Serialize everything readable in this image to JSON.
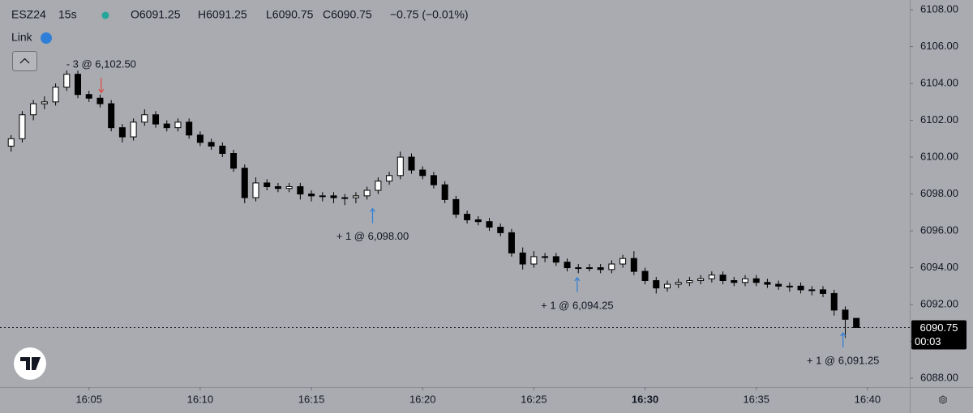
{
  "header": {
    "symbol": "ESZ24",
    "interval": "15s",
    "open": "O6091.25",
    "high": "H6091.25",
    "low": "L6090.75",
    "close": "C6090.75",
    "change": "−0.75 (−0.01%)",
    "link": "Link"
  },
  "chart_data": {
    "type": "candlestick",
    "up_color": "#ffffff",
    "down_color": "#000000",
    "wick_color": "#000000",
    "xlim": [
      961,
      1001.9
    ],
    "xticks": [
      {
        "value": 965,
        "label": "16:05"
      },
      {
        "value": 970,
        "label": "16:10"
      },
      {
        "value": 975,
        "label": "16:15"
      },
      {
        "value": 980,
        "label": "16:20"
      },
      {
        "value": 985,
        "label": "16:25"
      },
      {
        "value": 990,
        "label": "16:30"
      },
      {
        "value": 995,
        "label": "16:35"
      },
      {
        "value": 1000,
        "label": "16:40"
      }
    ],
    "bold_xtick": 5,
    "ylim": [
      6087.52,
      6108.53
    ],
    "yticks": [
      {
        "value": 6088,
        "label": "6088.00"
      },
      {
        "value": 6090,
        "label": "6090.00"
      },
      {
        "value": 6092,
        "label": "6092.00"
      },
      {
        "value": 6094,
        "label": "6094.00"
      },
      {
        "value": 6096,
        "label": "6096.00"
      },
      {
        "value": 6098,
        "label": "6098.00"
      },
      {
        "value": 6100,
        "label": "6100.00"
      },
      {
        "value": 6102,
        "label": "6102.00"
      },
      {
        "value": 6104,
        "label": "6104.00"
      },
      {
        "value": 6106,
        "label": "6106.00"
      },
      {
        "value": 6108,
        "label": "6108.00"
      }
    ],
    "x": [
      961.5,
      962,
      962.5,
      963,
      963.5,
      964,
      964.5,
      965,
      965.5,
      966,
      966.5,
      967,
      967.5,
      968,
      968.5,
      969,
      969.5,
      970,
      970.5,
      971,
      971.5,
      972,
      972.5,
      973,
      973.5,
      974,
      974.5,
      975,
      975.5,
      976,
      976.5,
      977,
      977.5,
      978,
      978.5,
      979,
      979.5,
      980,
      980.5,
      981,
      981.5,
      982,
      982.5,
      983,
      983.5,
      984,
      984.5,
      985,
      985.5,
      986,
      986.5,
      987,
      987.5,
      988,
      988.5,
      989,
      989.5,
      990,
      990.5,
      991,
      991.5,
      992,
      992.5,
      993,
      993.5,
      994,
      994.5,
      995,
      995.5,
      996,
      996.5,
      997,
      997.5,
      998,
      998.5,
      999,
      999.5
    ],
    "open": [
      6100.6,
      6101.0,
      6102.3,
      6102.9,
      6103.0,
      6103.8,
      6104.5,
      6103.4,
      6103.2,
      6102.9,
      6101.6,
      6101.1,
      6101.9,
      6102.3,
      6101.8,
      6101.6,
      6101.9,
      6101.2,
      6100.8,
      6100.6,
      6100.2,
      6099.4,
      6097.8,
      6098.6,
      6098.4,
      6098.3,
      6098.4,
      6098.0,
      6097.9,
      6097.9,
      6097.8,
      6097.8,
      6097.9,
      6098.2,
      6098.7,
      6099.0,
      6100.0,
      6099.3,
      6099.0,
      6098.5,
      6097.7,
      6096.9,
      6096.6,
      6096.5,
      6096.2,
      6095.9,
      6094.8,
      6094.2,
      6094.6,
      6094.6,
      6094.3,
      6094.0,
      6094.0,
      6094.0,
      6093.9,
      6094.2,
      6094.5,
      6093.8,
      6093.3,
      6092.9,
      6093.1,
      6093.2,
      6093.3,
      6093.4,
      6093.6,
      6093.3,
      6093.2,
      6093.4,
      6093.2,
      6093.1,
      6093.0,
      6093.0,
      6092.8,
      6092.8,
      6092.6,
      6091.7,
      6091.25
    ],
    "high": [
      6101.2,
      6102.5,
      6103.1,
      6103.3,
      6104.0,
      6104.7,
      6104.7,
      6103.6,
      6103.4,
      6103.1,
      6101.8,
      6102.1,
      6102.6,
      6102.5,
      6102.0,
      6102.1,
      6102.1,
      6101.4,
      6101.0,
      6100.8,
      6100.4,
      6099.6,
      6098.9,
      6098.8,
      6098.6,
      6098.6,
      6098.6,
      6098.2,
      6098.1,
      6098.1,
      6098.0,
      6098.1,
      6098.4,
      6098.9,
      6099.2,
      6100.3,
      6100.2,
      6099.5,
      6099.2,
      6098.7,
      6097.9,
      6097.1,
      6096.8,
      6096.7,
      6096.4,
      6096.1,
      6095.1,
      6094.9,
      6094.8,
      6094.8,
      6094.5,
      6094.2,
      6094.2,
      6094.2,
      6094.4,
      6094.7,
      6094.9,
      6094.0,
      6093.5,
      6093.3,
      6093.4,
      6093.5,
      6093.6,
      6093.8,
      6093.8,
      6093.5,
      6093.6,
      6093.6,
      6093.4,
      6093.3,
      6093.2,
      6093.2,
      6093.0,
      6093.0,
      6092.8,
      6091.9,
      6091.25
    ],
    "low": [
      6100.3,
      6100.8,
      6102.0,
      6102.6,
      6102.8,
      6103.6,
      6103.2,
      6103.0,
      6102.7,
      6101.4,
      6100.8,
      6100.9,
      6101.7,
      6101.6,
      6101.4,
      6101.4,
      6101.0,
      6100.6,
      6100.4,
      6100.0,
      6099.2,
      6097.5,
      6097.6,
      6098.2,
      6098.1,
      6098.1,
      6097.7,
      6097.6,
      6097.6,
      6097.5,
      6097.4,
      6097.5,
      6097.7,
      6098.0,
      6098.5,
      6098.8,
      6099.1,
      6098.8,
      6098.3,
      6097.5,
      6096.7,
      6096.4,
      6096.3,
      6096.0,
      6095.7,
      6094.6,
      6093.9,
      6094.0,
      6094.3,
      6094.1,
      6093.8,
      6093.7,
      6093.8,
      6093.7,
      6093.7,
      6094.0,
      6093.6,
      6093.1,
      6092.6,
      6092.7,
      6092.9,
      6093.0,
      6093.1,
      6093.2,
      6093.1,
      6093.0,
      6093.0,
      6093.0,
      6092.9,
      6092.8,
      6092.7,
      6092.6,
      6092.5,
      6092.4,
      6091.4,
      6090.2,
      6090.75
    ],
    "close": [
      6101.0,
      6102.3,
      6102.9,
      6103.0,
      6103.8,
      6104.5,
      6103.4,
      6103.2,
      6102.9,
      6101.6,
      6101.1,
      6101.9,
      6102.3,
      6101.8,
      6101.6,
      6101.9,
      6101.2,
      6100.8,
      6100.6,
      6100.2,
      6099.4,
      6097.8,
      6098.6,
      6098.4,
      6098.3,
      6098.4,
      6098.0,
      6097.9,
      6097.9,
      6097.8,
      6097.8,
      6097.9,
      6098.2,
      6098.7,
      6099.0,
      6100.0,
      6099.3,
      6099.0,
      6098.5,
      6097.7,
      6096.9,
      6096.6,
      6096.5,
      6096.2,
      6095.9,
      6094.8,
      6094.2,
      6094.6,
      6094.6,
      6094.3,
      6094.0,
      6094.0,
      6094.0,
      6093.9,
      6094.2,
      6094.5,
      6093.8,
      6093.3,
      6092.9,
      6093.1,
      6093.2,
      6093.3,
      6093.4,
      6093.6,
      6093.3,
      6093.2,
      6093.4,
      6093.2,
      6093.1,
      6093.0,
      6093.0,
      6092.8,
      6092.8,
      6092.6,
      6091.7,
      6091.2,
      6090.75
    ],
    "last_price": {
      "value": 6090.75,
      "label": "6090.75"
    },
    "countdown": "00:03",
    "trades": [
      {
        "side": "sell",
        "x": 965.55,
        "price": 6102.5,
        "label": "- 3 @ 6,102.50",
        "color": "#e0443c"
      },
      {
        "side": "buy",
        "x": 977.75,
        "price": 6098.0,
        "label": "+ 1 @ 6,098.00",
        "color": "#2f7fd8"
      },
      {
        "side": "buy",
        "x": 986.95,
        "price": 6094.25,
        "label": "+ 1 @ 6,094.25",
        "color": "#2f7fd8"
      },
      {
        "side": "buy",
        "x": 998.9,
        "price": 6091.25,
        "label": "+ 1 @ 6,091.25",
        "color": "#2f7fd8"
      }
    ]
  }
}
